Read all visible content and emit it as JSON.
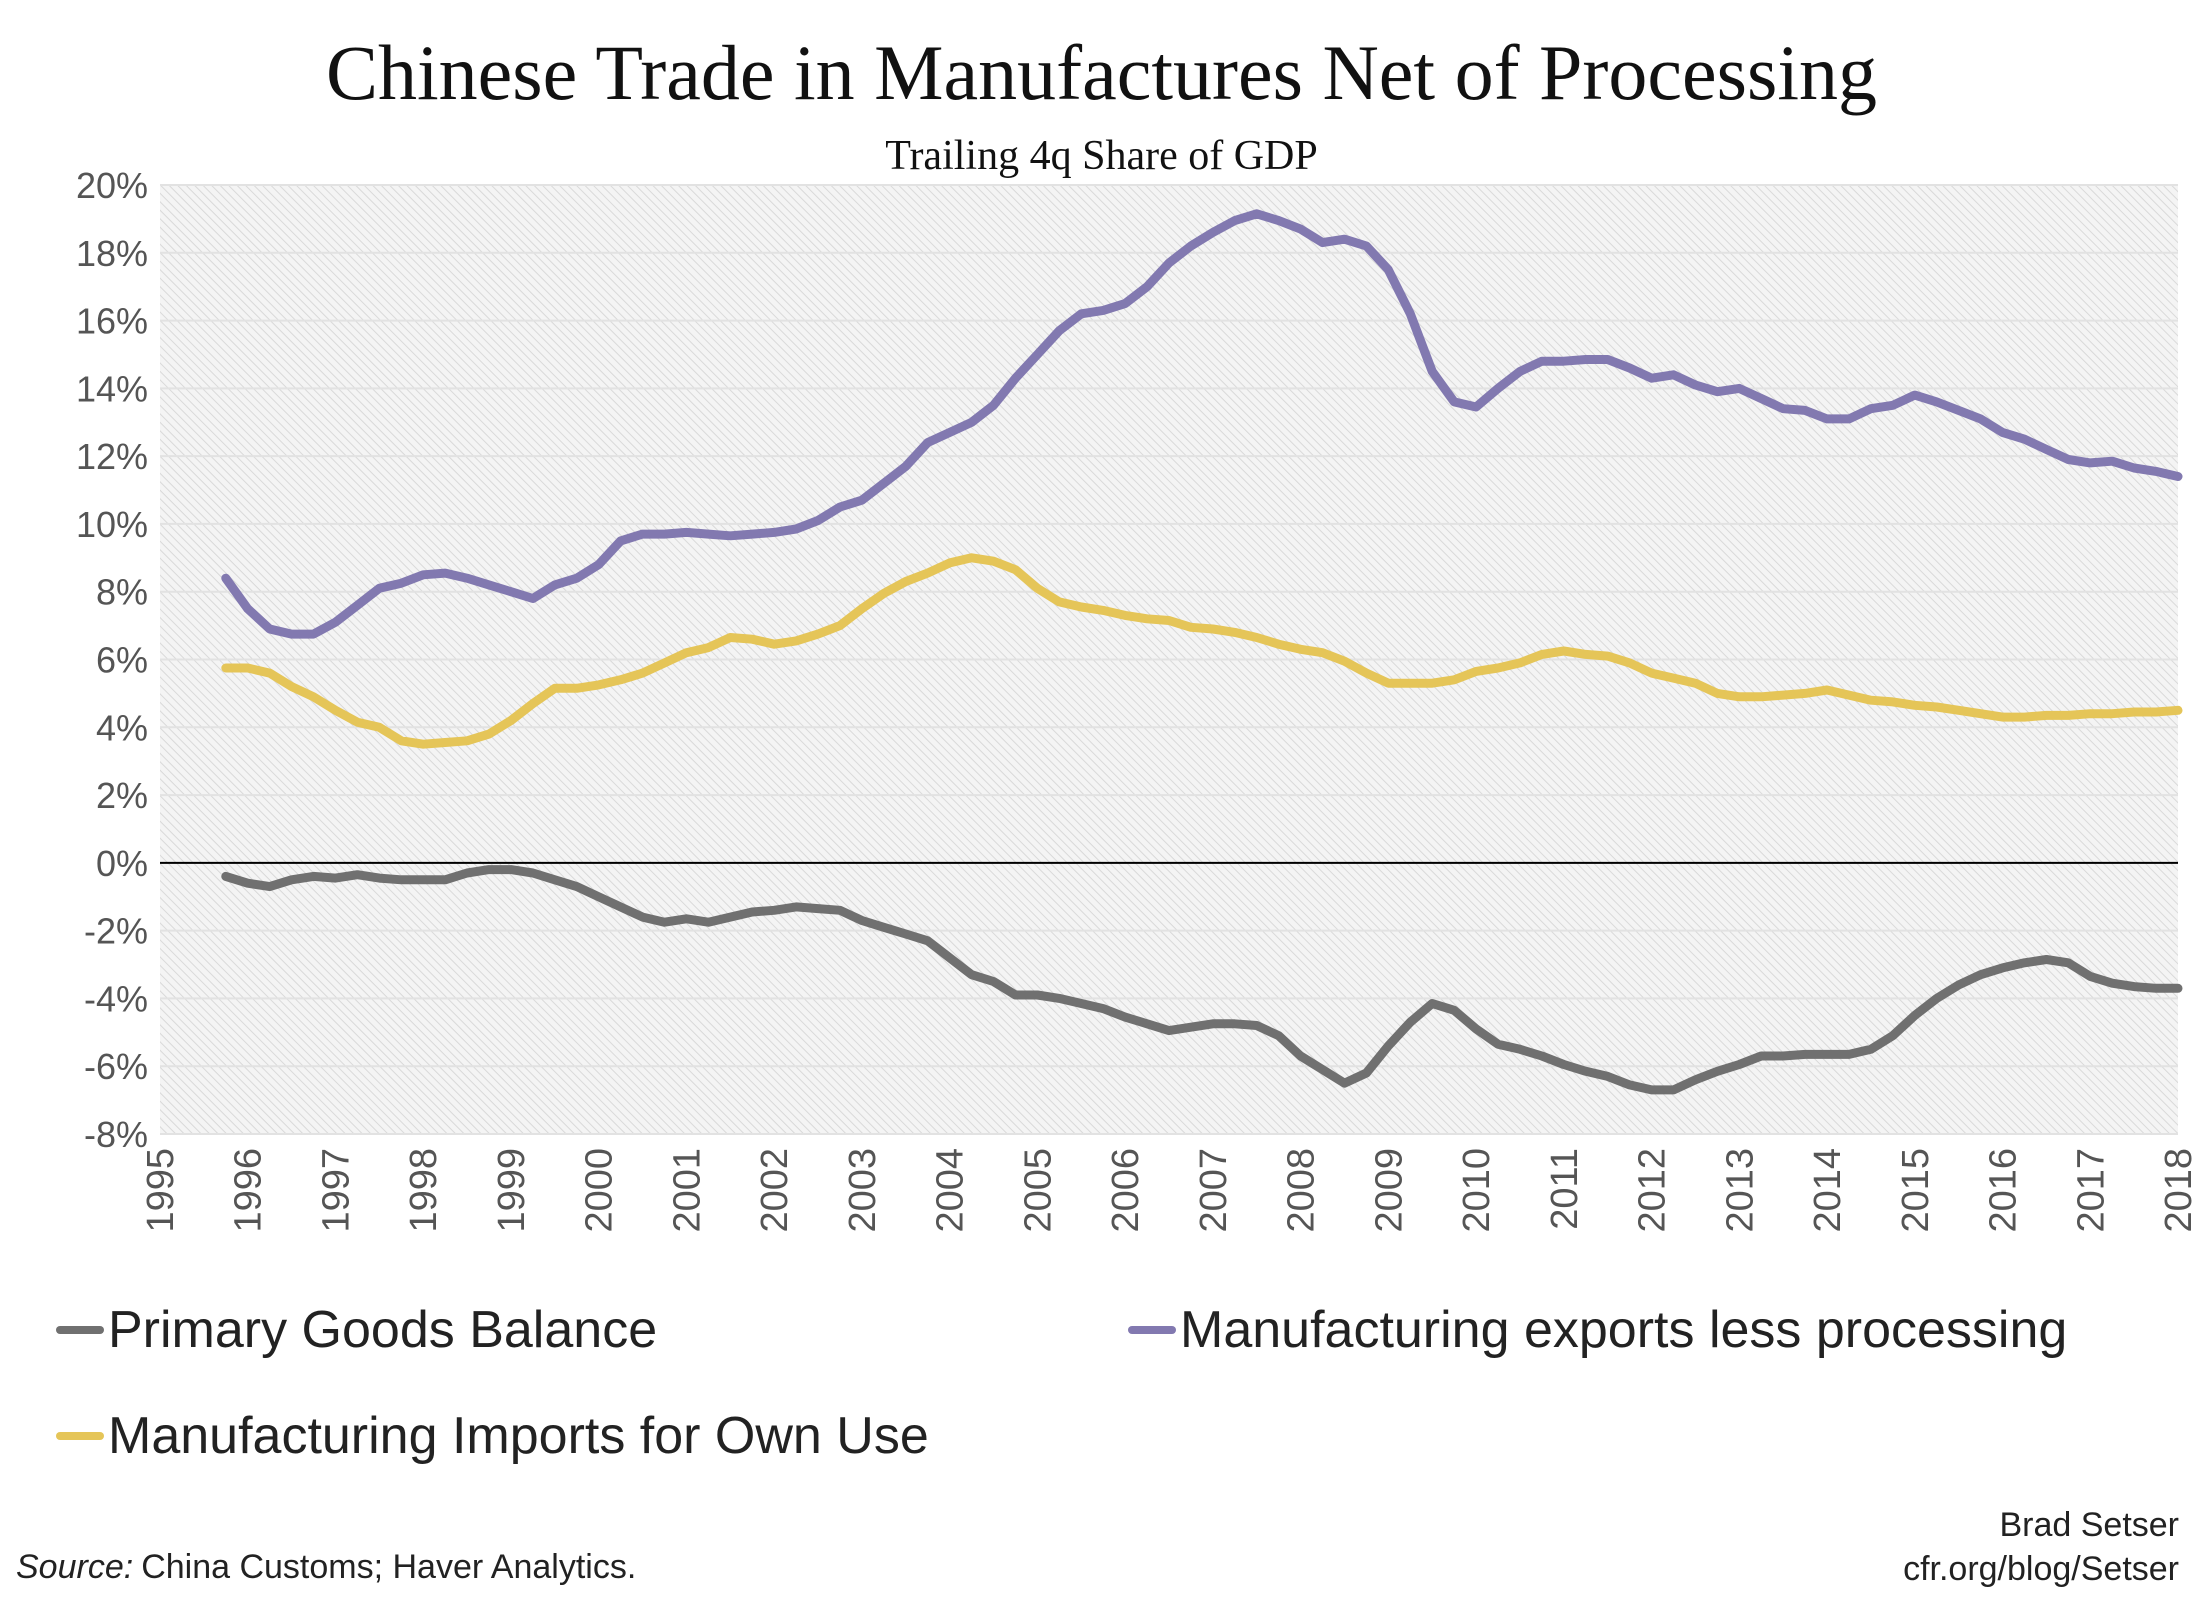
{
  "chart_data": {
    "type": "line",
    "title": "Chinese Trade in Manufactures Net of Processing",
    "subtitle": "Trailing 4q Share of GDP",
    "xlabel": "",
    "ylabel": "",
    "xlim": [
      1995,
      2018
    ],
    "ylim": [
      -8,
      20
    ],
    "x_ticks": [
      "1995",
      "1996",
      "1997",
      "1998",
      "1999",
      "2000",
      "2001",
      "2002",
      "2003",
      "2004",
      "2005",
      "2006",
      "2007",
      "2008",
      "2009",
      "2010",
      "2011",
      "2012",
      "2013",
      "2014",
      "2015",
      "2016",
      "2017",
      "2018"
    ],
    "y_ticks": [
      "20%",
      "18%",
      "16%",
      "14%",
      "12%",
      "10%",
      "8%",
      "6%",
      "4%",
      "2%",
      "0%",
      "-2%",
      "-4%",
      "-6%",
      "-8%"
    ],
    "grid": true,
    "legend_position": "bottom",
    "x_start": 1995.75,
    "x_step": 0.25,
    "series": [
      {
        "name": "Primary Goods Balance",
        "color": "#707070",
        "values": [
          -0.4,
          -0.6,
          -0.7,
          -0.5,
          -0.4,
          -0.45,
          -0.35,
          -0.45,
          -0.5,
          -0.5,
          -0.5,
          -0.3,
          -0.2,
          -0.2,
          -0.3,
          -0.5,
          -0.7,
          -1.0,
          -1.3,
          -1.6,
          -1.75,
          -1.65,
          -1.75,
          -1.6,
          -1.45,
          -1.4,
          -1.3,
          -1.35,
          -1.4,
          -1.7,
          -1.9,
          -2.1,
          -2.3,
          -2.8,
          -3.3,
          -3.5,
          -3.9,
          -3.9,
          -4.0,
          -4.15,
          -4.3,
          -4.55,
          -4.75,
          -4.95,
          -4.85,
          -4.75,
          -4.75,
          -4.8,
          -5.1,
          -5.7,
          -6.1,
          -6.5,
          -6.2,
          -5.4,
          -4.7,
          -4.15,
          -4.35,
          -4.9,
          -5.35,
          -5.5,
          -5.7,
          -5.95,
          -6.15,
          -6.3,
          -6.55,
          -6.7,
          -6.7,
          -6.4,
          -6.15,
          -5.95,
          -5.7,
          -5.7,
          -5.65,
          -5.65,
          -5.65,
          -5.5,
          -5.1,
          -4.5,
          -4.0,
          -3.6,
          -3.3,
          -3.1,
          -2.95,
          -2.85,
          -2.95,
          -3.35,
          -3.55,
          -3.65,
          -3.7,
          -3.7
        ]
      },
      {
        "name": "Manufacturing exports less processing",
        "color": "#8279b0",
        "values": [
          8.4,
          7.5,
          6.9,
          6.75,
          6.75,
          7.1,
          7.6,
          8.1,
          8.25,
          8.5,
          8.55,
          8.4,
          8.2,
          8.0,
          7.8,
          8.2,
          8.4,
          8.8,
          9.5,
          9.7,
          9.7,
          9.75,
          9.7,
          9.65,
          9.7,
          9.75,
          9.85,
          10.1,
          10.5,
          10.7,
          11.2,
          11.7,
          12.4,
          12.7,
          13.0,
          13.5,
          14.3,
          15.0,
          15.7,
          16.2,
          16.3,
          16.5,
          17.0,
          17.7,
          18.2,
          18.6,
          18.95,
          19.15,
          18.95,
          18.7,
          18.3,
          18.4,
          18.2,
          17.5,
          16.2,
          14.5,
          13.6,
          13.45,
          14.0,
          14.5,
          14.8,
          14.8,
          14.85,
          14.85,
          14.6,
          14.3,
          14.4,
          14.1,
          13.9,
          14.0,
          13.7,
          13.4,
          13.35,
          13.1,
          13.1,
          13.4,
          13.5,
          13.8,
          13.6,
          13.35,
          13.1,
          12.7,
          12.5,
          12.2,
          11.9,
          11.8,
          11.85,
          11.65,
          11.55,
          11.4
        ]
      },
      {
        "name": "Manufacturing Imports for Own Use",
        "color": "#e5c558",
        "values": [
          5.75,
          5.75,
          5.6,
          5.2,
          4.9,
          4.5,
          4.15,
          4.0,
          3.6,
          3.5,
          3.55,
          3.6,
          3.8,
          4.2,
          4.7,
          5.15,
          5.15,
          5.25,
          5.4,
          5.6,
          5.9,
          6.2,
          6.35,
          6.65,
          6.6,
          6.45,
          6.55,
          6.75,
          7.0,
          7.5,
          7.95,
          8.3,
          8.55,
          8.85,
          9.0,
          8.9,
          8.65,
          8.1,
          7.7,
          7.55,
          7.45,
          7.3,
          7.2,
          7.15,
          6.95,
          6.9,
          6.8,
          6.65,
          6.45,
          6.3,
          6.2,
          5.95,
          5.6,
          5.3,
          5.3,
          5.3,
          5.4,
          5.65,
          5.75,
          5.9,
          6.15,
          6.25,
          6.15,
          6.1,
          5.9,
          5.6,
          5.45,
          5.3,
          5.0,
          4.9,
          4.9,
          4.95,
          5.0,
          5.1,
          4.95,
          4.8,
          4.75,
          4.65,
          4.6,
          4.5,
          4.4,
          4.3,
          4.3,
          4.35,
          4.35,
          4.4,
          4.4,
          4.45,
          4.45,
          4.5
        ]
      }
    ]
  },
  "footer": {
    "source_label": "Source:",
    "source_text": "China Customs; Haver Analytics.",
    "author": "Brad Setser",
    "url": "cfr.org/blog/Setser"
  }
}
